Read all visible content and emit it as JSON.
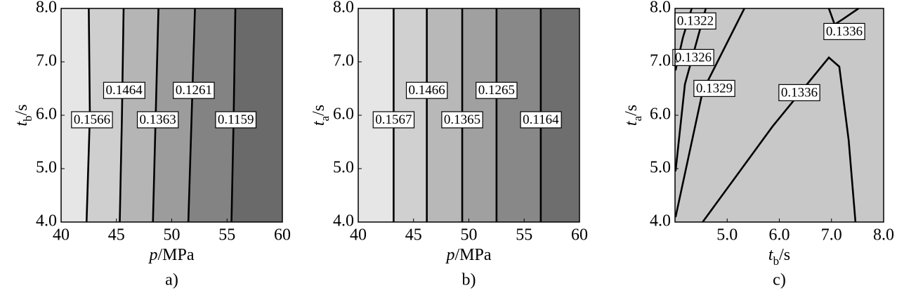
{
  "chart_data": [
    {
      "type": "contour",
      "caption": "a)",
      "x_label": [
        "p",
        "/MPa"
      ],
      "y_label": [
        "t",
        "b",
        "/s"
      ],
      "xlim": [
        40,
        60
      ],
      "ylim": [
        4,
        8
      ],
      "xticks": [
        40,
        45,
        50,
        55,
        60
      ],
      "yticks": [
        {
          "value": 4,
          "label": "4.0"
        },
        {
          "value": 5,
          "label": "5.0"
        },
        {
          "value": 6,
          "label": "6.0"
        },
        {
          "value": 7,
          "label": "7.0"
        },
        {
          "value": 8,
          "label": "8.0"
        }
      ],
      "fills": [
        "#e6e6e6",
        "#cfcfcf",
        "#b5b5b5",
        "#9c9c9c",
        "#838383",
        "#6a6a6a"
      ],
      "contours": [
        {
          "level": 0.1566,
          "x": [
            42.3,
            42.6,
            42.5
          ],
          "y": [
            4,
            6,
            8
          ]
        },
        {
          "level": 0.1464,
          "x": [
            45.3,
            45.5,
            45.65
          ],
          "y": [
            4,
            6,
            8
          ]
        },
        {
          "level": 0.1363,
          "x": [
            48.3,
            48.55,
            48.8
          ],
          "y": [
            4,
            6,
            8
          ]
        },
        {
          "level": 0.1261,
          "x": [
            51.5,
            51.8,
            52.1
          ],
          "y": [
            4,
            6,
            8
          ]
        },
        {
          "level": 0.1159,
          "x": [
            55.4,
            55.6,
            55.75
          ],
          "y": [
            4,
            6,
            8
          ]
        }
      ]
    },
    {
      "type": "contour",
      "caption": "b)",
      "x_label": [
        "p",
        "/MPa"
      ],
      "y_label": [
        "t",
        "a",
        "/s"
      ],
      "xlim": [
        40,
        60
      ],
      "ylim": [
        4,
        8
      ],
      "xticks": [
        40,
        45,
        50,
        55,
        60
      ],
      "yticks": [
        {
          "value": 4,
          "label": "4.0"
        },
        {
          "value": 5,
          "label": "5.0"
        },
        {
          "value": 6,
          "label": "6.0"
        },
        {
          "value": 7,
          "label": "7.0"
        },
        {
          "value": 8,
          "label": "8.0"
        }
      ],
      "fills": [
        "#e6e6e6",
        "#d0d0d0",
        "#b8b8b8",
        "#a0a0a0",
        "#888888",
        "#6e6e6e"
      ],
      "contours": [
        {
          "level": 0.1567,
          "x": [
            43.2,
            43.2,
            43.2
          ],
          "y": [
            4,
            6,
            8
          ]
        },
        {
          "level": 0.1466,
          "x": [
            46.2,
            46.2,
            46.2
          ],
          "y": [
            4,
            6,
            8
          ]
        },
        {
          "level": 0.1365,
          "x": [
            49.4,
            49.4,
            49.4
          ],
          "y": [
            4,
            6,
            8
          ]
        },
        {
          "level": 0.1265,
          "x": [
            52.5,
            52.5,
            52.5
          ],
          "y": [
            4,
            6,
            8
          ]
        },
        {
          "level": 0.1164,
          "x": [
            56.5,
            56.5,
            56.5
          ],
          "y": [
            4,
            6,
            8
          ]
        }
      ]
    },
    {
      "type": "contour",
      "caption": "c)",
      "x_label": [
        "t",
        "b",
        "/s"
      ],
      "y_label": [
        "t",
        "a",
        "/s"
      ],
      "xlim": [
        4,
        8
      ],
      "ylim": [
        4,
        8
      ],
      "xticks": [
        {
          "value": 5,
          "label": "5.0"
        },
        {
          "value": 6,
          "label": "6.0"
        },
        {
          "value": 7,
          "label": "7.0"
        },
        {
          "value": 8,
          "label": "8.0"
        }
      ],
      "yticks": [
        {
          "value": 4,
          "label": "4.0"
        },
        {
          "value": 5,
          "label": "5.0"
        },
        {
          "value": 6,
          "label": "6.0"
        },
        {
          "value": 7,
          "label": "7.0"
        },
        {
          "value": 8,
          "label": "8.0"
        }
      ],
      "fills": [
        "#c8c8c8"
      ],
      "contours": [
        {
          "level": 0.1322,
          "x": [
            4.01,
            4.15,
            4.32
          ],
          "y": [
            6.84,
            7.45,
            8
          ]
        },
        {
          "level": 0.1326,
          "x": [
            4.01,
            4.19,
            4.59
          ],
          "y": [
            4.95,
            6.58,
            8
          ]
        },
        {
          "level": 0.1329,
          "x": [
            4.01,
            4.53,
            5.33
          ],
          "y": [
            4.09,
            6.45,
            8
          ]
        },
        {
          "level": 0.1336,
          "x": [
            6.95,
            7.06,
            7.22,
            7.52
          ],
          "y": [
            8,
            7.7,
            7.8,
            8
          ]
        },
        {
          "level": 0.1336,
          "x": [
            4.53,
            5.87,
            6.95,
            7.15,
            7.33,
            7.46
          ],
          "y": [
            4,
            5.79,
            7.08,
            6.91,
            5.53,
            4
          ]
        }
      ]
    }
  ]
}
